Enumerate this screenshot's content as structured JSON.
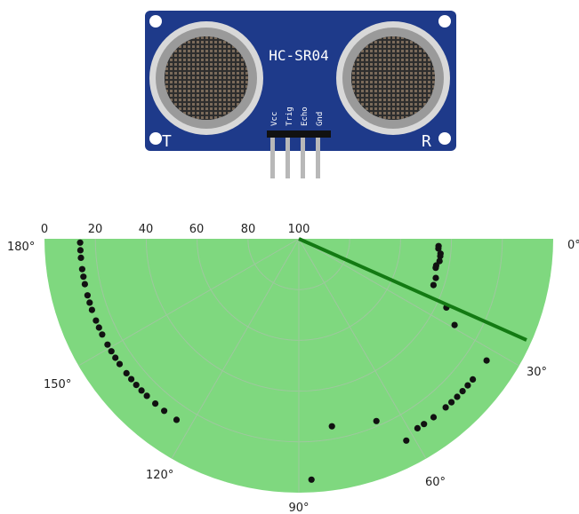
{
  "sensor": {
    "model": "HC-SR04",
    "pins": [
      "Vcc",
      "Trig",
      "Echo",
      "Gnd"
    ],
    "left_marker": "T",
    "right_marker": "R",
    "board_color": "#1e3a8a",
    "ring_color": "#9a9a9a"
  },
  "radar": {
    "colors": {
      "fill": "#7fd87f",
      "grid": "#9fc79f",
      "sweep": "#137a13",
      "points": "#111111"
    },
    "range_ticks": [
      "0",
      "20",
      "40",
      "60",
      "80",
      "100"
    ],
    "angle_labels": [
      "0°",
      "30°",
      "60°",
      "90°",
      "120°",
      "150°",
      "180°"
    ],
    "sweep_angle_deg": 24
  },
  "chart_data": {
    "type": "scatter",
    "projection": "polar (half plane, angle 0°–180°, radius reversed: 100 at centre, 0 at rim)",
    "angle_range_deg": [
      0,
      180
    ],
    "radial_range": [
      100,
      0
    ],
    "series": [
      {
        "values": [
          {
            "angle": 3,
            "r": 45
          },
          {
            "angle": 4,
            "r": 45
          },
          {
            "angle": 6,
            "r": 44
          },
          {
            "angle": 7,
            "r": 44
          },
          {
            "angle": 9,
            "r": 44
          },
          {
            "angle": 11,
            "r": 45
          },
          {
            "angle": 12,
            "r": 45
          },
          {
            "angle": 16,
            "r": 44
          },
          {
            "angle": 19,
            "r": 44
          },
          {
            "angle": 25,
            "r": 36
          },
          {
            "angle": 29,
            "r": 30
          },
          {
            "angle": 33,
            "r": 12
          },
          {
            "angle": 39,
            "r": 12
          },
          {
            "angle": 41,
            "r": 12
          },
          {
            "angle": 43,
            "r": 12
          },
          {
            "angle": 45,
            "r": 12
          },
          {
            "angle": 47,
            "r": 12
          },
          {
            "angle": 49,
            "r": 12
          },
          {
            "angle": 53,
            "r": 12
          },
          {
            "angle": 56,
            "r": 12
          },
          {
            "angle": 58,
            "r": 12
          },
          {
            "angle": 62,
            "r": 10
          },
          {
            "angle": 67,
            "r": 22
          },
          {
            "angle": 80,
            "r": 25
          },
          {
            "angle": 87,
            "r": 5
          },
          {
            "angle": 124,
            "r": 14
          },
          {
            "angle": 128,
            "r": 14
          },
          {
            "angle": 131,
            "r": 14
          },
          {
            "angle": 134,
            "r": 14
          },
          {
            "angle": 136,
            "r": 14
          },
          {
            "angle": 138,
            "r": 14
          },
          {
            "angle": 140,
            "r": 14
          },
          {
            "angle": 142,
            "r": 14
          },
          {
            "angle": 145,
            "r": 14
          },
          {
            "angle": 147,
            "r": 14
          },
          {
            "angle": 149,
            "r": 14
          },
          {
            "angle": 151,
            "r": 14
          },
          {
            "angle": 154,
            "r": 14
          },
          {
            "angle": 156,
            "r": 14
          },
          {
            "angle": 158,
            "r": 14
          },
          {
            "angle": 161,
            "r": 14
          },
          {
            "angle": 163,
            "r": 14
          },
          {
            "angle": 165,
            "r": 14
          },
          {
            "angle": 168,
            "r": 14
          },
          {
            "angle": 170,
            "r": 14
          },
          {
            "angle": 172,
            "r": 14
          },
          {
            "angle": 175,
            "r": 14
          },
          {
            "angle": 177,
            "r": 14
          },
          {
            "angle": 179,
            "r": 14
          }
        ]
      }
    ]
  }
}
